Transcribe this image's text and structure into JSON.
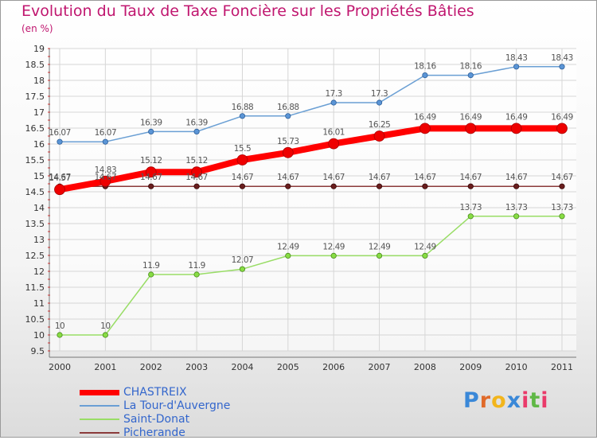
{
  "title": "Evolution du Taux de Taxe Foncière sur les Propriétés Bâties",
  "unit_label": "(en %)",
  "logo_text": "Proxiti",
  "chart_data": {
    "type": "line",
    "x": [
      "2000",
      "2001",
      "2002",
      "2003",
      "2004",
      "2005",
      "2006",
      "2007",
      "2008",
      "2009",
      "2010",
      "2011"
    ],
    "ylim": [
      9.5,
      19
    ],
    "yticks": [
      9.5,
      10,
      10.5,
      11,
      11.5,
      12,
      12.5,
      13,
      13.5,
      14,
      14.5,
      15,
      15.5,
      16,
      16.5,
      17,
      17.5,
      18,
      18.5,
      19
    ],
    "ytick_labels": [
      "9.5",
      "10",
      "10.5",
      "11",
      "11.5",
      "12",
      "12.5",
      "13",
      "13.5",
      "14",
      "14.5",
      "15",
      "15.5",
      "16",
      "16.5",
      "17",
      "17.5",
      "18",
      "18.5",
      "19"
    ],
    "grid": true,
    "legend_position": "bottom-left",
    "series": [
      {
        "name": "CHASTREIX",
        "color": "#ff0000",
        "values": [
          14.57,
          14.83,
          15.12,
          15.12,
          15.5,
          15.73,
          16.01,
          16.25,
          16.49,
          16.49,
          16.49,
          16.49
        ],
        "labels": [
          "14.57",
          "14.83",
          "15.12",
          "15.12",
          "15.5",
          "15.73",
          "16.01",
          "16.25",
          "16.49",
          "16.49",
          "16.49",
          "16.49"
        ]
      },
      {
        "name": "La Tour-d'Auvergne",
        "color": "#6a9fd4",
        "values": [
          16.07,
          16.07,
          16.39,
          16.39,
          16.88,
          16.88,
          17.3,
          17.3,
          18.16,
          18.16,
          18.43,
          18.43
        ],
        "labels": [
          "16.07",
          "16.07",
          "16.39",
          "16.39",
          "16.88",
          "16.88",
          "17.3",
          "17.3",
          "18.16",
          "18.16",
          "18.43",
          "18.43"
        ]
      },
      {
        "name": "Saint-Donat",
        "color": "#99dd66",
        "values": [
          10,
          10,
          11.9,
          11.9,
          12.07,
          12.49,
          12.49,
          12.49,
          12.49,
          13.73,
          13.73,
          13.73
        ],
        "labels": [
          "10",
          "10",
          "11.9",
          "11.9",
          "12.07",
          "12.49",
          "12.49",
          "12.49",
          "12.49",
          "13.73",
          "13.73",
          "13.73"
        ]
      },
      {
        "name": "Picherande",
        "color": "#8b3a3a",
        "values": [
          14.67,
          14.67,
          14.67,
          14.67,
          14.67,
          14.67,
          14.67,
          14.67,
          14.67,
          14.67,
          14.67,
          14.67
        ],
        "labels": [
          "14.67",
          "14.67",
          "14.67",
          "14.67",
          "14.67",
          "14.67",
          "14.67",
          "14.67",
          "14.67",
          "14.67",
          "14.67",
          "14.67"
        ]
      }
    ]
  }
}
